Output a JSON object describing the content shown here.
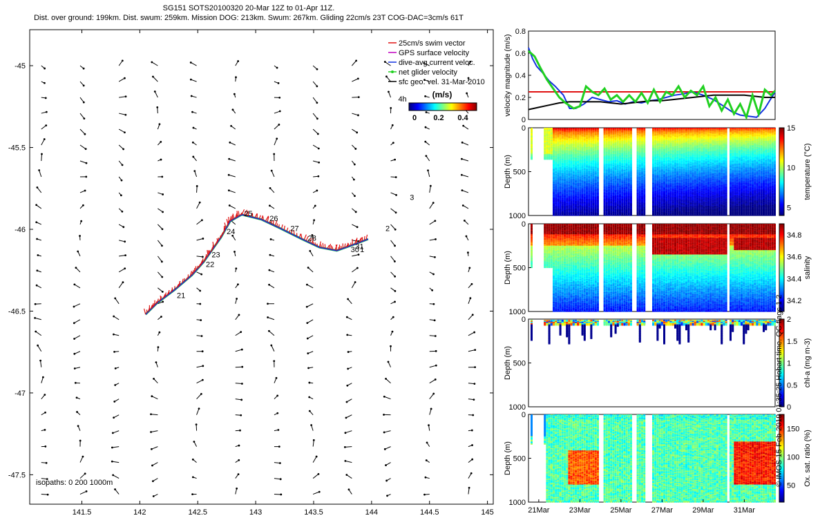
{
  "header": {
    "title": "SG151 SOTS20100320 20-Mar 12Z to 01-Apr 11Z.",
    "subtitle": "Dist. over ground: 199km. Dist. swum: 259km. Mission DOG: 213km. Swum: 267km. Gliding 22cm/s 23T COG-DAC=3cm/s 61T"
  },
  "credit": "© IMOS 15-Feb-2019 01:35:25 Hobart time. QC flags 1 2",
  "colors": {
    "swim_vector": "#e01010",
    "gps_velocity": "#c000c0",
    "dac": "#1030e0",
    "net_velocity": "#20d020",
    "geo_vel": "#000000"
  },
  "chart_data": [
    {
      "type": "scatter",
      "name": "map",
      "x_ticks": [
        "141.5",
        "142",
        "142.5",
        "143",
        "143.5",
        "144",
        "144.5",
        "145"
      ],
      "y_ticks": [
        "-45",
        "-45.5",
        "-46",
        "-46.5",
        "-47",
        "-47.5"
      ],
      "xlim": [
        141.05,
        145.05
      ],
      "ylim": [
        -47.68,
        -44.78
      ],
      "legend": {
        "placement": "top-right",
        "entries": [
          "25cm/s swim vector",
          "GPS surface velocity",
          "dive-avg current veloc.",
          "net glider velocity",
          "sfc geo. vel. 31-Mar-2010"
        ]
      },
      "colorbar": {
        "title": "(m/s)",
        "ticks": [
          "0",
          "0.2",
          "0.4"
        ]
      },
      "isopaths": "isopaths: 0   200  1000m",
      "track": [
        [
          142.05,
          -46.52
        ],
        [
          142.15,
          -46.45
        ],
        [
          142.3,
          -46.37
        ],
        [
          142.45,
          -46.28
        ],
        [
          142.55,
          -46.2
        ],
        [
          142.62,
          -46.13
        ],
        [
          142.7,
          -46.05
        ],
        [
          142.78,
          -45.95
        ],
        [
          142.88,
          -45.91
        ],
        [
          143.05,
          -45.94
        ],
        [
          143.2,
          -45.99
        ],
        [
          143.4,
          -46.06
        ],
        [
          143.55,
          -46.11
        ],
        [
          143.7,
          -46.13
        ],
        [
          143.82,
          -46.1
        ],
        [
          143.97,
          -46.06
        ]
      ],
      "day_labels": [
        {
          "text": "21",
          "lon": 142.32,
          "lat": -46.42
        },
        {
          "text": "22",
          "lon": 142.57,
          "lat": -46.23
        },
        {
          "text": "23",
          "lon": 142.62,
          "lat": -46.17
        },
        {
          "text": "24",
          "lon": 142.75,
          "lat": -46.03
        },
        {
          "text": "25",
          "lon": 142.9,
          "lat": -45.92
        },
        {
          "text": "26",
          "lon": 143.12,
          "lat": -45.95
        },
        {
          "text": "27",
          "lon": 143.3,
          "lat": -46.01
        },
        {
          "text": "28",
          "lon": 143.45,
          "lat": -46.07
        },
        {
          "text": "30",
          "lon": 143.82,
          "lat": -46.14
        },
        {
          "text": "31",
          "lon": 143.86,
          "lat": -46.12
        },
        {
          "text": "1",
          "lon": 143.9,
          "lat": -46.14
        },
        {
          "text": "2",
          "lon": 144.12,
          "lat": -46.01
        },
        {
          "text": "3",
          "lon": 144.33,
          "lat": -45.82
        },
        {
          "text": "4h",
          "lon": 144.23,
          "lat": -45.22
        }
      ]
    },
    {
      "type": "line",
      "name": "velocity",
      "ylabel": "velocity magnitude (m/s)",
      "ylim": [
        0,
        0.8
      ],
      "y_ticks": [
        "0",
        "0.2",
        "0.4",
        "0.6",
        "0.8"
      ],
      "x_range_days": [
        20.5,
        32.5
      ],
      "swim_speed": 0.25,
      "series": [
        {
          "key": "dac",
          "values": [
            [
              20.5,
              0.65
            ],
            [
              20.7,
              0.55
            ],
            [
              20.9,
              0.48
            ],
            [
              21.2,
              0.42
            ],
            [
              21.5,
              0.35
            ],
            [
              21.8,
              0.3
            ],
            [
              22.2,
              0.22
            ],
            [
              22.5,
              0.1
            ],
            [
              22.8,
              0.1
            ],
            [
              23.2,
              0.14
            ],
            [
              23.6,
              0.2
            ],
            [
              24.0,
              0.18
            ],
            [
              24.4,
              0.16
            ],
            [
              24.8,
              0.17
            ],
            [
              25.2,
              0.14
            ],
            [
              25.6,
              0.16
            ],
            [
              26.0,
              0.15
            ],
            [
              26.4,
              0.17
            ],
            [
              26.8,
              0.18
            ],
            [
              27.2,
              0.2
            ],
            [
              27.6,
              0.22
            ],
            [
              28.0,
              0.23
            ],
            [
              28.5,
              0.25
            ],
            [
              29.0,
              0.22
            ],
            [
              29.5,
              0.18
            ],
            [
              30.0,
              0.12
            ],
            [
              30.4,
              0.07
            ],
            [
              30.8,
              0.04
            ],
            [
              31.2,
              0.03
            ],
            [
              31.6,
              0.02
            ],
            [
              32.0,
              0.1
            ],
            [
              32.5,
              0.25
            ]
          ]
        },
        {
          "key": "geo",
          "values": [
            [
              20.5,
              0.09
            ],
            [
              21.0,
              0.11
            ],
            [
              21.5,
              0.13
            ],
            [
              22.0,
              0.15
            ],
            [
              22.5,
              0.16
            ],
            [
              23.0,
              0.16
            ],
            [
              23.5,
              0.16
            ],
            [
              24.0,
              0.16
            ],
            [
              24.5,
              0.15
            ],
            [
              25.0,
              0.14
            ],
            [
              25.5,
              0.15
            ],
            [
              26.0,
              0.16
            ],
            [
              26.5,
              0.17
            ],
            [
              27.0,
              0.17
            ],
            [
              27.5,
              0.18
            ],
            [
              28.0,
              0.19
            ],
            [
              28.5,
              0.2
            ],
            [
              29.0,
              0.21
            ],
            [
              29.5,
              0.22
            ],
            [
              30.0,
              0.22
            ],
            [
              30.5,
              0.22
            ],
            [
              31.0,
              0.22
            ],
            [
              31.5,
              0.21
            ],
            [
              32.0,
              0.2
            ],
            [
              32.5,
              0.2
            ]
          ]
        },
        {
          "key": "net",
          "values": [
            [
              20.5,
              0.62
            ],
            [
              20.8,
              0.57
            ],
            [
              21.1,
              0.46
            ],
            [
              21.4,
              0.36
            ],
            [
              21.7,
              0.28
            ],
            [
              22.0,
              0.2
            ],
            [
              22.3,
              0.15
            ],
            [
              22.7,
              0.1
            ],
            [
              23.0,
              0.12
            ],
            [
              23.3,
              0.3
            ],
            [
              23.6,
              0.25
            ],
            [
              23.9,
              0.22
            ],
            [
              24.2,
              0.28
            ],
            [
              24.5,
              0.18
            ],
            [
              24.8,
              0.22
            ],
            [
              25.1,
              0.16
            ],
            [
              25.4,
              0.22
            ],
            [
              25.7,
              0.16
            ],
            [
              26.0,
              0.24
            ],
            [
              26.3,
              0.15
            ],
            [
              26.6,
              0.27
            ],
            [
              26.9,
              0.16
            ],
            [
              27.2,
              0.25
            ],
            [
              27.5,
              0.22
            ],
            [
              27.8,
              0.3
            ],
            [
              28.1,
              0.2
            ],
            [
              28.4,
              0.26
            ],
            [
              28.7,
              0.22
            ],
            [
              29.0,
              0.3
            ],
            [
              29.3,
              0.12
            ],
            [
              29.6,
              0.2
            ],
            [
              29.9,
              0.08
            ],
            [
              30.2,
              0.18
            ],
            [
              30.5,
              0.05
            ],
            [
              30.8,
              0.14
            ],
            [
              31.1,
              0.02
            ],
            [
              31.4,
              0.22
            ],
            [
              31.7,
              0.05
            ],
            [
              32.0,
              0.27
            ],
            [
              32.3,
              0.22
            ],
            [
              32.5,
              0.26
            ]
          ]
        }
      ]
    },
    {
      "type": "heatmap",
      "name": "temperature",
      "ylabel": "Depth (m)",
      "y_ticks": [
        "0",
        "500",
        "1000"
      ],
      "colorbar_label": "temperature (°C)",
      "colorbar_ticks": [
        "5",
        "10",
        "15"
      ],
      "vmin": 4,
      "vmax": 15
    },
    {
      "type": "heatmap",
      "name": "salinity",
      "ylabel": "Depth (m)",
      "y_ticks": [
        "0",
        "500",
        "1000"
      ],
      "colorbar_label": "salinity",
      "colorbar_ticks": [
        "34.2",
        "34.4",
        "34.6",
        "34.8"
      ],
      "vmin": 34.1,
      "vmax": 34.9
    },
    {
      "type": "heatmap",
      "name": "chla",
      "ylabel": "Depth (m)",
      "y_ticks": [
        "0",
        "500",
        "1000"
      ],
      "colorbar_label": "chl-a (mg m-3)",
      "colorbar_ticks": [
        "0",
        "0.5",
        "1",
        "1.5",
        "2"
      ],
      "vmin": 0,
      "vmax": 2
    },
    {
      "type": "heatmap",
      "name": "oxygen",
      "ylabel": "Depth (m)",
      "y_ticks": [
        "0",
        "500",
        "1000"
      ],
      "colorbar_label": "Ox. sat. ratio (%)",
      "colorbar_ticks": [
        "50",
        "100",
        "150"
      ],
      "vmin": 20,
      "vmax": 175,
      "x_ticks": [
        "21Mar",
        "23Mar",
        "25Mar",
        "27Mar",
        "29Mar",
        "31Mar"
      ],
      "x_tick_days": [
        21,
        23,
        25,
        27,
        29,
        31
      ]
    }
  ]
}
